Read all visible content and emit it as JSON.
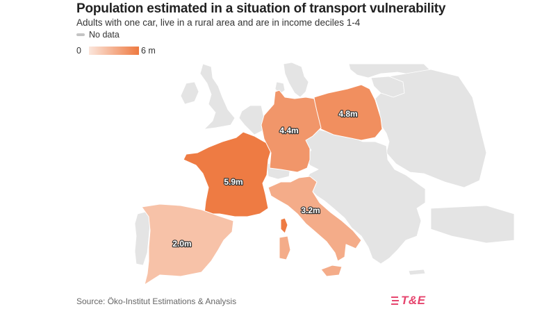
{
  "title": "Population estimated in a situation of transport vulnerability",
  "subtitle": "Adults with one car, live in a rural area and are in income deciles 1-4",
  "legend": {
    "no_data_label": "No data",
    "min_label": "0",
    "max_label": "6 m",
    "min_value": 0,
    "max_value": 6,
    "color_low": "#fbe6dc",
    "color_high": "#ee7940",
    "no_data_color": "#e4e4e4"
  },
  "countries": [
    {
      "id": "france",
      "name": "France",
      "value": 5.9,
      "label": "5.9m"
    },
    {
      "id": "poland",
      "name": "Poland",
      "value": 4.8,
      "label": "4.8m"
    },
    {
      "id": "germany",
      "name": "Germany",
      "value": 4.4,
      "label": "4.4m"
    },
    {
      "id": "italy",
      "name": "Italy",
      "value": 3.2,
      "label": "3.2m"
    },
    {
      "id": "spain",
      "name": "Spain",
      "value": 2.0,
      "label": "2.0m"
    }
  ],
  "source": "Source: Öko-Institut Estimations & Analysis",
  "logo": {
    "text": "T&E",
    "color": "#e6456e"
  }
}
